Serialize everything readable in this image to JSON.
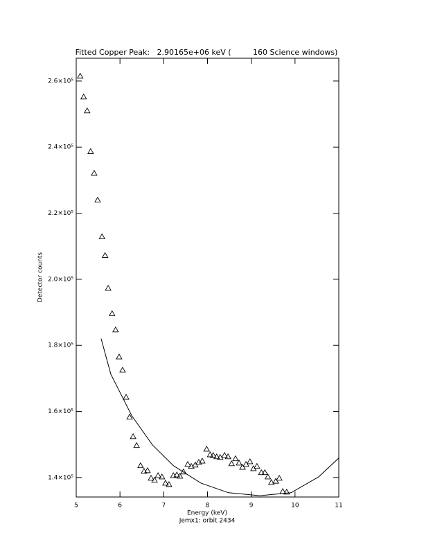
{
  "chart_data": {
    "type": "scatter",
    "title": "Fitted Copper Peak:   2.90165e+06 keV (         160 Science windows)",
    "xlabel": "Energy (keV)",
    "ylabel": "Detector counts",
    "footer": "Jemx1: orbit 2434",
    "xlim": [
      5,
      11
    ],
    "xticks": [
      5,
      6,
      7,
      8,
      9,
      10,
      11
    ],
    "ylim": [
      134100,
      266900
    ],
    "yticks": [
      {
        "value": 140000,
        "label": "1.4×10⁵"
      },
      {
        "value": 160000,
        "label": "1.6×10⁵"
      },
      {
        "value": 180000,
        "label": "1.8×10⁵"
      },
      {
        "value": 200000,
        "label": "2.0×10⁵"
      },
      {
        "value": 220000,
        "label": "2.2×10⁵"
      },
      {
        "value": 240000,
        "label": "2.4×10⁵"
      },
      {
        "value": 260000,
        "label": "2.6×10⁵"
      }
    ],
    "series": [
      {
        "style": "triangles",
        "color": "#000000",
        "x": [
          5.09,
          5.17,
          5.25,
          5.33,
          5.41,
          5.49,
          5.59,
          5.66,
          5.73,
          5.82,
          5.9,
          5.98,
          6.06,
          6.14,
          6.22,
          6.3,
          6.38,
          6.47,
          6.55,
          6.63,
          6.71,
          6.79,
          6.87,
          6.96,
          7.04,
          7.12,
          7.22,
          7.3,
          7.37,
          7.45,
          7.55,
          7.63,
          7.72,
          7.8,
          7.88,
          7.98,
          8.06,
          8.13,
          8.21,
          8.29,
          8.39,
          8.47,
          8.55,
          8.64,
          8.72,
          8.8,
          8.88,
          8.97,
          9.05,
          9.13,
          9.23,
          9.31,
          9.38,
          9.46,
          9.56,
          9.64,
          9.72,
          9.81
        ],
        "values": [
          261500,
          255200,
          251000,
          238700,
          232100,
          224000,
          212900,
          207200,
          197300,
          189600,
          184700,
          176500,
          172500,
          164300,
          158300,
          152400,
          149700,
          143600,
          141900,
          142100,
          139800,
          139200,
          140600,
          140200,
          138300,
          137900,
          140600,
          140800,
          140400,
          141700,
          144000,
          143400,
          143800,
          144600,
          145000,
          148600,
          146900,
          146700,
          146300,
          146100,
          146700,
          146300,
          144200,
          145700,
          144400,
          143100,
          144000,
          144800,
          142700,
          143400,
          141500,
          141500,
          140200,
          138500,
          138900,
          139800,
          135800,
          135600
        ]
      },
      {
        "style": "line",
        "color": "#000000",
        "x": [
          5.57,
          5.79,
          6.27,
          6.74,
          7.22,
          7.85,
          8.48,
          9.2,
          9.91,
          10.54,
          11
        ],
        "values": [
          182000,
          171300,
          158700,
          149900,
          143600,
          138300,
          135400,
          134500,
          135400,
          140200,
          145900
        ]
      }
    ]
  }
}
